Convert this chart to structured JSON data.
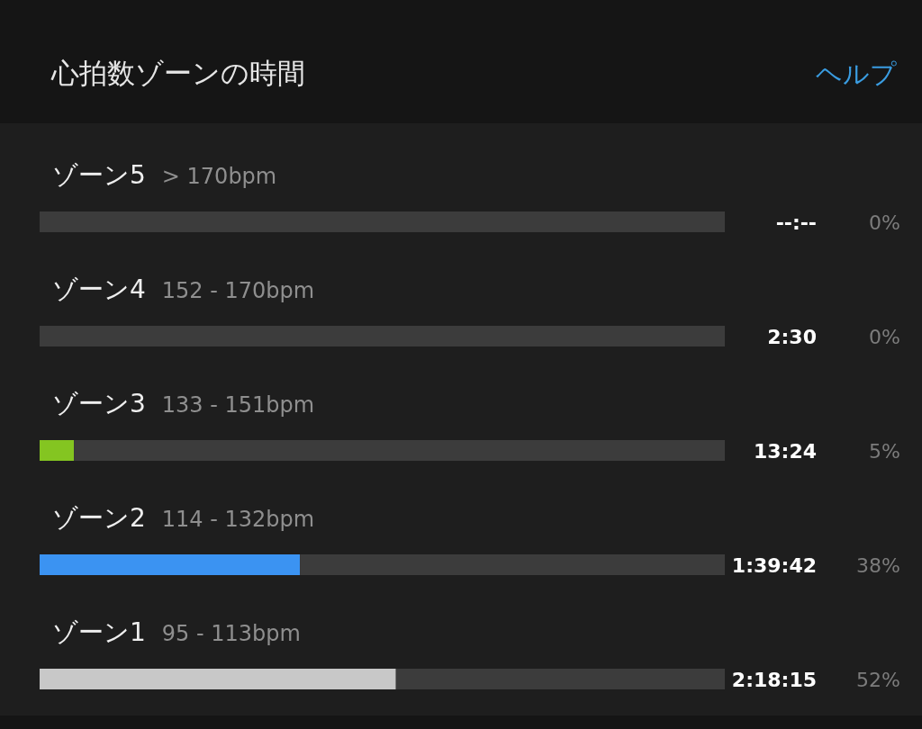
{
  "chart_data": {
    "type": "bar",
    "orientation": "horizontal",
    "stacked": true,
    "title": "心拍数ゾーンの時間",
    "categories": [
      "ゾーン5",
      "ゾーン4",
      "ゾーン3",
      "ゾーン2",
      "ゾーン1"
    ],
    "series": [
      {
        "colors": [
          "#3c3c3c",
          "#f5822a",
          "#84c521",
          "#3b93f2",
          "#c8c8c8"
        ],
        "values": [
          0,
          0,
          5,
          38,
          52
        ],
        "value_labels": [
          "0%",
          "0%",
          "5%",
          "38%",
          "52%"
        ]
      },
      {
        "color": "#3c3c3c",
        "values": [
          100,
          100,
          95,
          62,
          48
        ]
      }
    ],
    "xlim": [
      0,
      100
    ],
    "tick_labels": false,
    "annotations": [
      "ヘルプ",
      "> 170bpm",
      "--:--",
      "152 - 170bpm",
      "2:30",
      "133 - 151bpm",
      "13:24",
      "114 - 132bpm",
      "1:39:42",
      "95 - 113bpm",
      "2:18:15"
    ]
  }
}
